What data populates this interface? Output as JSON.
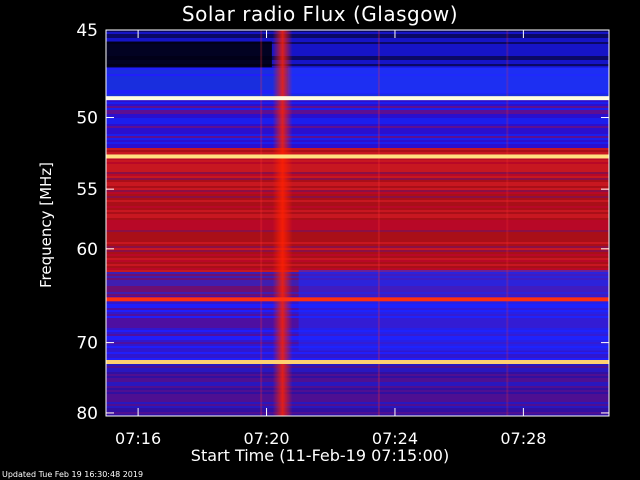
{
  "title": "Solar radio Flux (Glasgow)",
  "footer": "Updated Tue Feb 19 16:30:48 2019",
  "chart_data": {
    "type": "heatmap",
    "title": "Solar radio Flux (Glasgow)",
    "ylabel": "Frequency [MHz]",
    "xlabel": "Start Time (11-Feb-19 07:15:00)",
    "x_range": [
      "07:15:00",
      "07:30:40"
    ],
    "y_range_mhz": [
      45,
      80.5
    ],
    "y_scale": "reciprocal",
    "x_ticks": [
      "07:16",
      "07:20",
      "07:24",
      "07:28"
    ],
    "y_ticks": [
      45,
      50,
      55,
      60,
      70,
      80
    ],
    "colormap": [
      "#000033",
      "#1010cc",
      "#2020ff",
      "#5010b0",
      "#a00020",
      "#e00000",
      "#ff6020",
      "#ffffa0",
      "#ffffff"
    ],
    "burst_time": "07:20:30",
    "interference_lines_mhz": [
      48.8,
      52.6,
      65.0,
      72.5
    ],
    "bright_line_colors": [
      "#fffbe0",
      "#ffe080",
      "#ff3010",
      "#ffd070"
    ]
  }
}
